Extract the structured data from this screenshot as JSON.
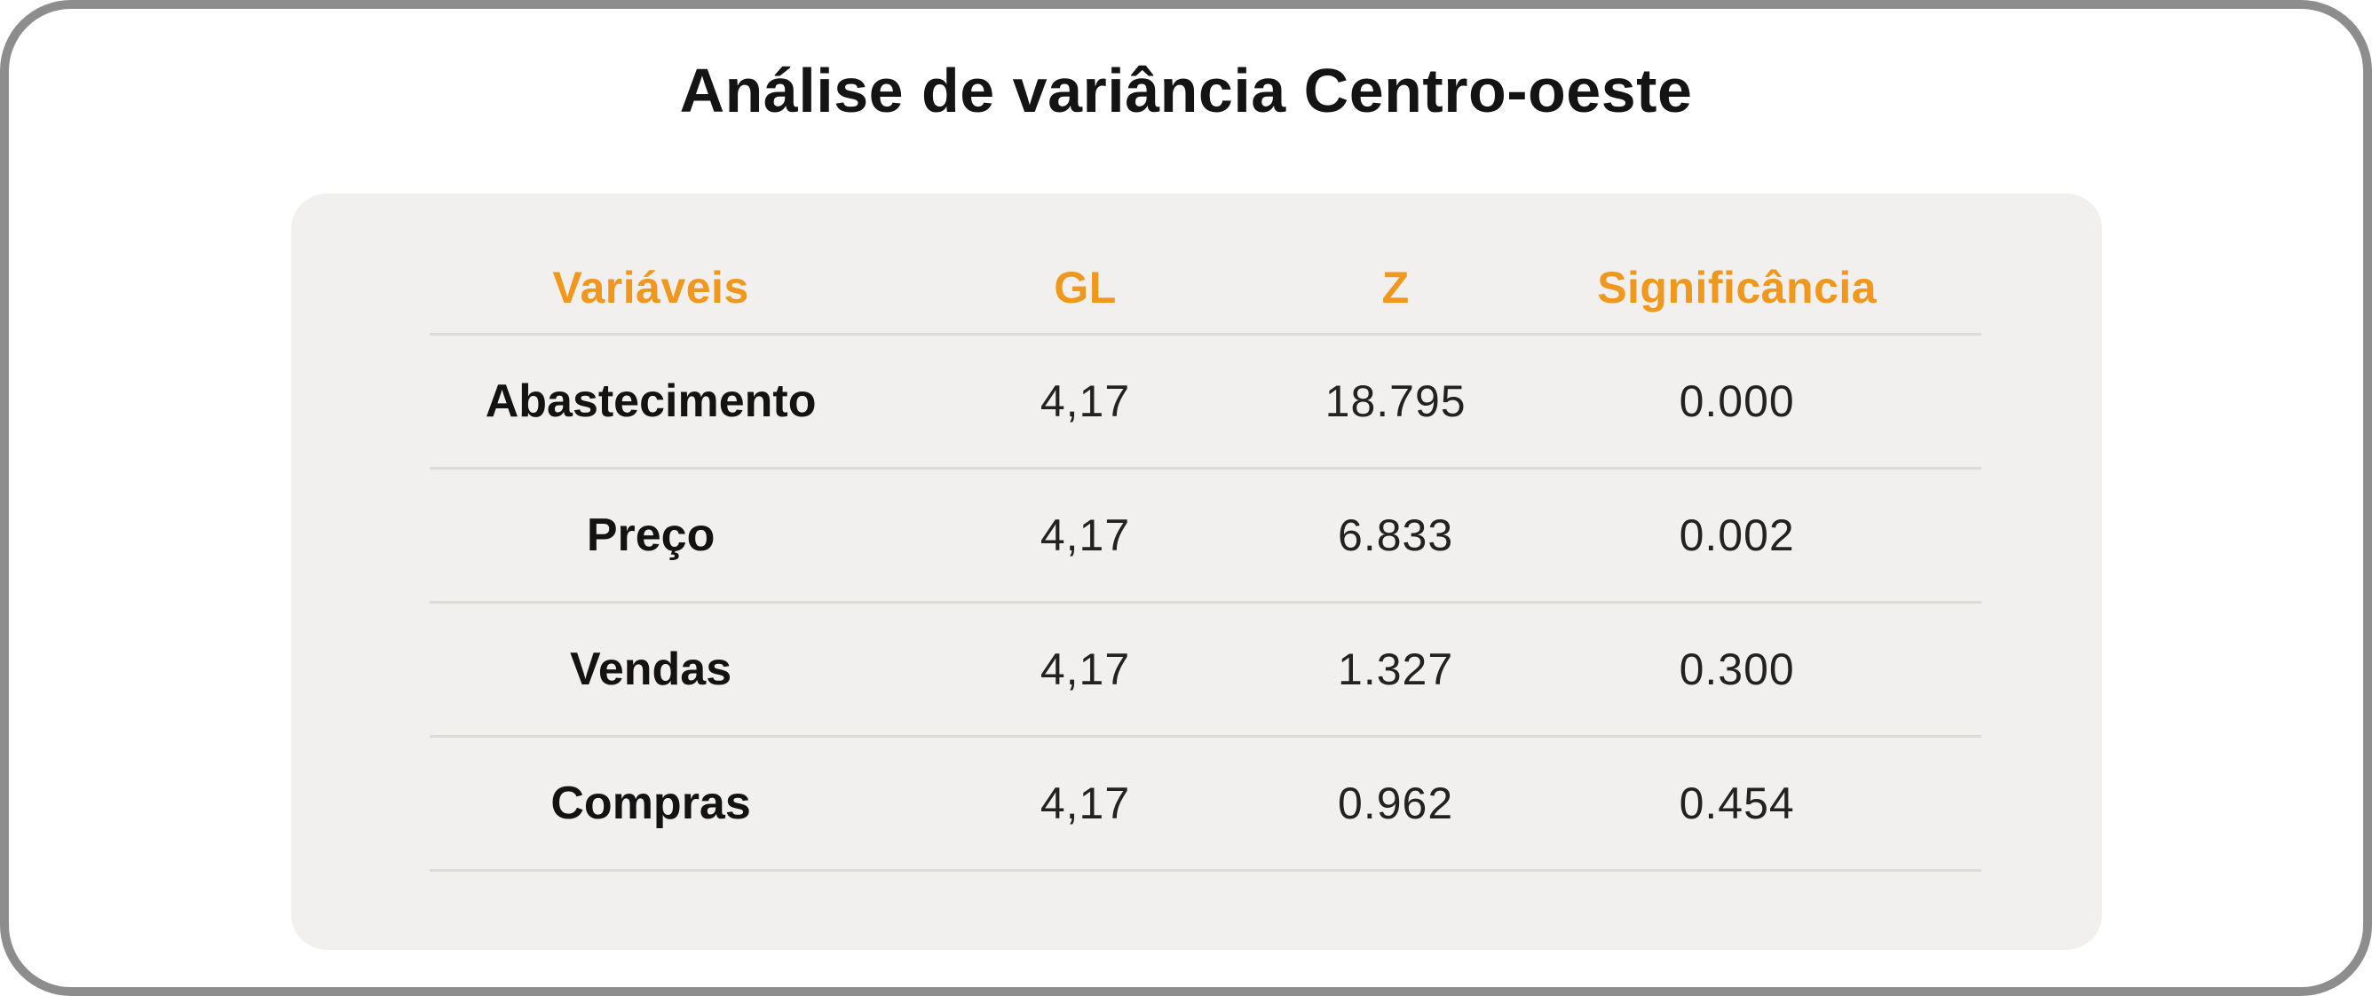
{
  "card": {
    "title": "Análise de variância Centro-oeste"
  },
  "table": {
    "columns": [
      {
        "label": "Variáveis"
      },
      {
        "label": "GL"
      },
      {
        "label": "Z"
      },
      {
        "label": "Significância"
      }
    ],
    "rows": [
      {
        "variavel": "Abastecimento",
        "gl": "4,17",
        "z": "18.795",
        "sig": "0.000"
      },
      {
        "variavel": "Preço",
        "gl": "4,17",
        "z": "6.833",
        "sig": "0.002"
      },
      {
        "variavel": "Vendas",
        "gl": "4,17",
        "z": "1.327",
        "sig": "0.300"
      },
      {
        "variavel": "Compras",
        "gl": "4,17",
        "z": "0.962",
        "sig": "0.454"
      }
    ]
  },
  "colors": {
    "accent_orange": "#f0981e",
    "panel_background": "#f1f0ee",
    "card_border_gray": "#8d8d8d",
    "row_divider": "#dcdbd8",
    "text_black": "#141414"
  },
  "chart_data": {
    "type": "table",
    "title": "Análise de variância Centro-oeste",
    "columns": [
      "Variáveis",
      "GL",
      "Z",
      "Significância"
    ],
    "rows": [
      [
        "Abastecimento",
        "4,17",
        "18.795",
        "0.000"
      ],
      [
        "Preço",
        "4,17",
        "6.833",
        "0.002"
      ],
      [
        "Vendas",
        "4,17",
        "1.327",
        "0.300"
      ],
      [
        "Compras",
        "4,17",
        "0.962",
        "0.454"
      ]
    ],
    "layout": {
      "header_text_color": "#f0981e",
      "header_style": "bold",
      "gridlines": "horizontal-only",
      "panel_background": "#f1f0ee"
    }
  }
}
